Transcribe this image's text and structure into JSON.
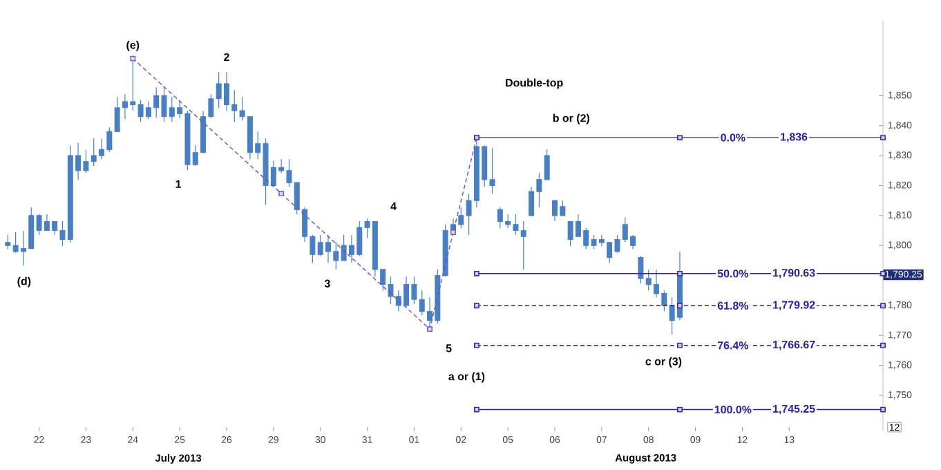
{
  "chart_data": {
    "type": "candlestick",
    "color": "#4a7fc0",
    "categories": [
      null,
      null,
      null,
      null,
      null,
      "22",
      null,
      null,
      null,
      null,
      null,
      "23",
      null,
      null,
      null,
      null,
      null,
      "24",
      null,
      null,
      null,
      null,
      null,
      "25",
      null,
      null,
      null,
      null,
      null,
      "26",
      null,
      null,
      null,
      null,
      null,
      "29",
      null,
      null,
      null,
      null,
      null,
      "30",
      null,
      null,
      null,
      null,
      null,
      "31",
      null,
      null,
      null,
      null,
      null,
      "01",
      null,
      null,
      null,
      null,
      null,
      "02",
      null,
      null,
      null,
      null,
      null,
      "05",
      null,
      null,
      null,
      null,
      null,
      "06",
      null,
      null,
      null,
      null,
      null,
      "07",
      null,
      null,
      null,
      null,
      null,
      "08",
      null,
      null,
      null,
      null,
      null,
      "09",
      null,
      null,
      null,
      null,
      null,
      "12",
      null,
      null,
      null,
      null,
      null,
      "13",
      null,
      null,
      null,
      null,
      null,
      null,
      null,
      null,
      null,
      null,
      null,
      null
    ],
    "ohlc": [
      null,
      [
        1801,
        1803.5,
        1798.8,
        1800
      ],
      [
        1800,
        1804.4,
        1797.5,
        1798
      ],
      [
        1798,
        1804.8,
        1793.3,
        1799
      ],
      [
        1799,
        1812.7,
        1798.8,
        1810
      ],
      [
        1810,
        1810.4,
        1803.5,
        1805
      ],
      [
        1805,
        1810.4,
        1805,
        1808
      ],
      [
        1808,
        1808.1,
        1803.5,
        1805
      ],
      [
        1805,
        1808.1,
        1799.8,
        1802
      ],
      [
        1802,
        1833.4,
        1801,
        1830
      ],
      [
        1830,
        1834.3,
        1821.9,
        1825
      ],
      [
        1825,
        1832,
        1824.2,
        1828
      ],
      [
        1828,
        1835.7,
        1826.5,
        1830
      ],
      [
        1830,
        1835.7,
        1828.8,
        1832
      ],
      [
        1832,
        1839.4,
        1831.1,
        1838
      ],
      [
        1838,
        1849.5,
        1838,
        1846
      ],
      [
        1846,
        1850.5,
        1842.2,
        1848
      ],
      [
        1848,
        1862.4,
        1844.9,
        1847
      ],
      [
        1847,
        1848.6,
        1841.2,
        1843
      ],
      [
        1843,
        1848.2,
        1842.2,
        1846
      ],
      [
        1846,
        1852.8,
        1842.6,
        1850
      ],
      [
        1850,
        1852.8,
        1841.2,
        1843
      ],
      [
        1843,
        1849.5,
        1841.2,
        1846
      ],
      [
        1846,
        1848.6,
        1842.6,
        1844
      ],
      [
        1844,
        1844.9,
        1825.1,
        1827
      ],
      [
        1827,
        1833.4,
        1826.5,
        1831
      ],
      [
        1831,
        1844.9,
        1831,
        1843
      ],
      [
        1843,
        1850.5,
        1842.6,
        1849
      ],
      [
        1849,
        1857.8,
        1845.9,
        1854
      ],
      [
        1854,
        1857.8,
        1844.9,
        1847
      ],
      [
        1847,
        1851.8,
        1841.2,
        1845
      ],
      [
        1845,
        1849.5,
        1841.7,
        1843
      ],
      [
        1843,
        1843,
        1828.8,
        1831
      ],
      [
        1831,
        1838,
        1828.8,
        1834
      ],
      [
        1834,
        1835.7,
        1813.6,
        1820
      ],
      [
        1820,
        1828.3,
        1819.6,
        1826
      ],
      [
        1826,
        1828.8,
        1824.2,
        1825
      ],
      [
        1825,
        1828.8,
        1819.6,
        1821
      ],
      [
        1821,
        1821,
        1810.4,
        1812
      ],
      [
        1812,
        1812.7,
        1801.2,
        1803
      ],
      [
        1803,
        1803.5,
        1794.2,
        1797
      ],
      [
        1797,
        1803.5,
        1796.5,
        1801
      ],
      [
        1801,
        1803.5,
        1794.2,
        1798
      ],
      [
        1798,
        1801.2,
        1792,
        1795
      ],
      [
        1795,
        1803.5,
        1795,
        1800
      ],
      [
        1800,
        1803.5,
        1794.2,
        1797
      ],
      [
        1797,
        1808.1,
        1796.5,
        1806
      ],
      [
        1806,
        1809,
        1802.5,
        1808
      ],
      [
        1808,
        1808,
        1789.6,
        1792
      ],
      [
        1792,
        1792,
        1785,
        1787
      ],
      [
        1787,
        1789.6,
        1780.4,
        1783
      ],
      [
        1783,
        1785,
        1778.1,
        1780
      ],
      [
        1780,
        1789.6,
        1779.5,
        1787
      ],
      [
        1787,
        1789.6,
        1780.4,
        1782
      ],
      [
        1782,
        1785,
        1776.7,
        1778
      ],
      [
        1778,
        1782.7,
        1772.1,
        1775
      ],
      [
        1775,
        1791.9,
        1774,
        1790
      ],
      [
        1790,
        1807.1,
        1789.6,
        1805
      ],
      [
        1805,
        1809,
        1803.5,
        1807
      ],
      [
        1807,
        1812.7,
        1805.8,
        1810
      ],
      [
        1810,
        1817.3,
        1803.5,
        1815
      ],
      [
        1815,
        1835.7,
        1812.7,
        1833
      ],
      [
        1833,
        1833.4,
        1819.6,
        1822
      ],
      [
        1822,
        1832.5,
        1817.3,
        1820
      ],
      [
        1812,
        1812.7,
        1805.8,
        1808
      ],
      [
        1808,
        1810.4,
        1805.8,
        1807
      ],
      [
        1807,
        1810.4,
        1803.5,
        1805
      ],
      [
        1805,
        1808.1,
        1791.9,
        1803
      ],
      [
        1810,
        1819.6,
        1810,
        1818
      ],
      [
        1818,
        1824.2,
        1812.7,
        1822
      ],
      [
        1822,
        1832,
        1822,
        1830
      ],
      [
        1815,
        1815,
        1808.1,
        1810
      ],
      [
        1810,
        1815,
        1810,
        1813
      ],
      [
        1808,
        1808.1,
        1799.8,
        1802
      ],
      [
        1803,
        1810.4,
        1803,
        1808
      ],
      [
        1805,
        1805.8,
        1798.8,
        1800
      ],
      [
        1800,
        1803.5,
        1798.8,
        1802
      ],
      [
        1802,
        1803.5,
        1799.8,
        1801
      ],
      [
        1801,
        1801.2,
        1794.2,
        1796
      ],
      [
        1798,
        1803.5,
        1797.5,
        1802
      ],
      [
        1802,
        1809.4,
        1801.2,
        1807
      ],
      [
        1803,
        1803.5,
        1798.8,
        1800
      ],
      [
        1796,
        1796.5,
        1787.3,
        1789
      ],
      [
        1789,
        1791.9,
        1785,
        1787
      ],
      [
        1787,
        1791.9,
        1782.7,
        1784
      ],
      [
        1784,
        1785,
        1778.1,
        1780
      ],
      [
        1780,
        1782.7,
        1770.3,
        1775
      ],
      [
        1776,
        1797.9,
        1775,
        1790.25
      ],
      null,
      null,
      null,
      null,
      null,
      null,
      null,
      null,
      null,
      null,
      null,
      null,
      null,
      null,
      null,
      null,
      null,
      null,
      null,
      null,
      null,
      null,
      null,
      null,
      null,
      null
    ],
    "ylim": [
      1738,
      1875
    ],
    "yticks": [
      {
        "value": 1750,
        "label": "1,750"
      },
      {
        "value": 1760,
        "label": "1,760"
      },
      {
        "value": 1770,
        "label": "1,770"
      },
      {
        "value": 1780,
        "label": "1,780"
      },
      {
        "value": 1790,
        "label": null
      },
      {
        "value": 1800,
        "label": "1,800"
      },
      {
        "value": 1810,
        "label": "1,810"
      },
      {
        "value": 1820,
        "label": "1,820"
      },
      {
        "value": 1830,
        "label": "1,830"
      },
      {
        "value": 1840,
        "label": "1,840"
      },
      {
        "value": 1850,
        "label": "1,850"
      }
    ],
    "series": [
      {
        "type": "line",
        "color": "#6a4fd0",
        "line_style": "dashed",
        "marker": "square",
        "values": [
          null,
          null,
          null,
          null,
          null,
          null,
          null,
          null,
          null,
          null,
          null,
          null,
          null,
          null,
          null,
          null,
          null,
          1862.4,
          null,
          null,
          null,
          null,
          null,
          null,
          null,
          null,
          null,
          null,
          null,
          null,
          null,
          null,
          null,
          null,
          null,
          null,
          1817.3,
          null,
          null,
          null,
          null,
          null,
          null,
          null,
          null,
          null,
          null,
          null,
          null,
          null,
          null,
          null,
          null,
          null,
          null,
          1772.1,
          null,
          null,
          1804.4,
          null,
          null,
          1836,
          null,
          null,
          null,
          null,
          null,
          null,
          null,
          null,
          null,
          null,
          null,
          null,
          null,
          null,
          null,
          null,
          null,
          null,
          null,
          null,
          null,
          null,
          null,
          null,
          null,
          null,
          null,
          null,
          null,
          null,
          null,
          null,
          null,
          null,
          null,
          null,
          null,
          null,
          null,
          null,
          null,
          null,
          null,
          null,
          null,
          null,
          null,
          null,
          null,
          null,
          null,
          null
        ]
      },
      {
        "type": "line",
        "color": "#2e1f9a",
        "line_style": "solid",
        "marker": "square",
        "values": [
          null,
          null,
          null,
          null,
          null,
          null,
          null,
          null,
          null,
          null,
          null,
          null,
          null,
          null,
          null,
          null,
          null,
          null,
          null,
          null,
          null,
          null,
          null,
          null,
          null,
          null,
          null,
          null,
          null,
          null,
          null,
          null,
          null,
          null,
          null,
          null,
          null,
          null,
          null,
          null,
          null,
          null,
          null,
          null,
          null,
          null,
          null,
          null,
          null,
          null,
          null,
          null,
          null,
          null,
          null,
          null,
          null,
          null,
          null,
          null,
          null,
          1836,
          null,
          null,
          null,
          null,
          null,
          null,
          null,
          null,
          null,
          null,
          null,
          null,
          null,
          null,
          null,
          null,
          null,
          null,
          null,
          null,
          null,
          null,
          null,
          null,
          null,
          1836,
          null,
          null,
          null,
          null,
          null,
          null,
          null,
          null,
          null,
          null,
          null,
          null,
          null,
          null,
          null,
          null,
          null,
          null,
          null,
          null,
          null,
          null,
          null,
          null,
          null,
          1836
        ]
      },
      {
        "type": "line",
        "color": "#2e1f9a",
        "line_style": "solid",
        "marker": "square",
        "values": [
          null,
          null,
          null,
          null,
          null,
          null,
          null,
          null,
          null,
          null,
          null,
          null,
          null,
          null,
          null,
          null,
          null,
          null,
          null,
          null,
          null,
          null,
          null,
          null,
          null,
          null,
          null,
          null,
          null,
          null,
          null,
          null,
          null,
          null,
          null,
          null,
          null,
          null,
          null,
          null,
          null,
          null,
          null,
          null,
          null,
          null,
          null,
          null,
          null,
          null,
          null,
          null,
          null,
          null,
          null,
          null,
          null,
          null,
          null,
          null,
          null,
          1790.63,
          null,
          null,
          null,
          null,
          null,
          null,
          null,
          null,
          null,
          null,
          null,
          null,
          null,
          null,
          null,
          null,
          null,
          null,
          null,
          null,
          null,
          null,
          null,
          null,
          null,
          1790.63,
          null,
          null,
          null,
          null,
          null,
          null,
          null,
          null,
          null,
          null,
          null,
          null,
          null,
          null,
          null,
          null,
          null,
          null,
          null,
          null,
          null,
          null,
          null,
          null,
          null,
          1790.63
        ]
      },
      {
        "type": "line",
        "color": "#2e1f9a",
        "line_style": "dashed",
        "marker": "square",
        "values": [
          null,
          null,
          null,
          null,
          null,
          null,
          null,
          null,
          null,
          null,
          null,
          null,
          null,
          null,
          null,
          null,
          null,
          null,
          null,
          null,
          null,
          null,
          null,
          null,
          null,
          null,
          null,
          null,
          null,
          null,
          null,
          null,
          null,
          null,
          null,
          null,
          null,
          null,
          null,
          null,
          null,
          null,
          null,
          null,
          null,
          null,
          null,
          null,
          null,
          null,
          null,
          null,
          null,
          null,
          null,
          null,
          null,
          null,
          null,
          null,
          null,
          1779.92,
          null,
          null,
          null,
          null,
          null,
          null,
          null,
          null,
          null,
          null,
          null,
          null,
          null,
          null,
          null,
          null,
          null,
          null,
          null,
          null,
          null,
          null,
          null,
          null,
          null,
          1779.92,
          null,
          null,
          null,
          null,
          null,
          null,
          null,
          null,
          null,
          null,
          null,
          null,
          null,
          null,
          null,
          null,
          null,
          null,
          null,
          null,
          null,
          null,
          null,
          null,
          null,
          1779.92
        ]
      },
      {
        "type": "line",
        "color": "#2e1f9a",
        "line_style": "dashed",
        "marker": "square",
        "values": [
          null,
          null,
          null,
          null,
          null,
          null,
          null,
          null,
          null,
          null,
          null,
          null,
          null,
          null,
          null,
          null,
          null,
          null,
          null,
          null,
          null,
          null,
          null,
          null,
          null,
          null,
          null,
          null,
          null,
          null,
          null,
          null,
          null,
          null,
          null,
          null,
          null,
          null,
          null,
          null,
          null,
          null,
          null,
          null,
          null,
          null,
          null,
          null,
          null,
          null,
          null,
          null,
          null,
          null,
          null,
          null,
          null,
          null,
          null,
          null,
          null,
          1766.67,
          null,
          null,
          null,
          null,
          null,
          null,
          null,
          null,
          null,
          null,
          null,
          null,
          null,
          null,
          null,
          null,
          null,
          null,
          null,
          null,
          null,
          null,
          null,
          null,
          null,
          1766.67,
          null,
          null,
          null,
          null,
          null,
          null,
          null,
          null,
          null,
          null,
          null,
          null,
          null,
          null,
          null,
          null,
          null,
          null,
          null,
          null,
          null,
          null,
          null,
          null,
          null,
          1766.67
        ]
      },
      {
        "type": "line",
        "color": "#2e1f9a",
        "line_style": "solid",
        "marker": "square",
        "values": [
          null,
          null,
          null,
          null,
          null,
          null,
          null,
          null,
          null,
          null,
          null,
          null,
          null,
          null,
          null,
          null,
          null,
          null,
          null,
          null,
          null,
          null,
          null,
          null,
          null,
          null,
          null,
          null,
          null,
          null,
          null,
          null,
          null,
          null,
          null,
          null,
          null,
          null,
          null,
          null,
          null,
          null,
          null,
          null,
          null,
          null,
          null,
          null,
          null,
          null,
          null,
          null,
          null,
          null,
          null,
          null,
          null,
          null,
          null,
          null,
          null,
          1745.25,
          null,
          null,
          null,
          null,
          null,
          null,
          null,
          null,
          null,
          null,
          null,
          null,
          null,
          null,
          null,
          null,
          null,
          null,
          null,
          null,
          null,
          null,
          null,
          null,
          null,
          1745.25,
          null,
          null,
          null,
          null,
          null,
          null,
          null,
          null,
          null,
          null,
          null,
          null,
          null,
          null,
          null,
          null,
          null,
          null,
          null,
          null,
          null,
          null,
          null,
          null,
          null,
          1745.25
        ]
      }
    ],
    "annotations": [
      "(d)",
      "(e)",
      "1",
      "2",
      "3",
      "4",
      "5",
      "a or (1)",
      "Double-top",
      "b or (2)",
      "c or (3)",
      {
        "text": "0.0%",
        "y": 1836
      },
      {
        "text": "1,836",
        "y": 1836
      },
      {
        "text": "50.0%",
        "y": 1790.63
      },
      {
        "text": "1,790.63",
        "y": 1790.63
      },
      {
        "text": "61.8%",
        "y": 1779.92
      },
      {
        "text": "1,779.92",
        "y": 1779.92
      },
      {
        "text": "76.4%",
        "y": 1766.67
      },
      {
        "text": "1,766.67",
        "y": 1766.67
      },
      {
        "text": "100.0%",
        "y": 1745.25
      },
      {
        "text": "1,745.25",
        "y": 1745.25
      },
      "1,790.25",
      "July 2013",
      "August 2013",
      "12"
    ]
  }
}
